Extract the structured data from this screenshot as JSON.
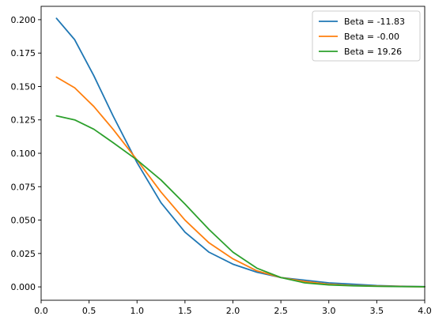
{
  "chart_data": {
    "type": "line",
    "title": "",
    "xlabel": "",
    "ylabel": "",
    "xlim": [
      0.0,
      4.0
    ],
    "ylim": [
      -0.01,
      0.21
    ],
    "x_ticks": [
      0.0,
      0.5,
      1.0,
      1.5,
      2.0,
      2.5,
      3.0,
      3.5,
      4.0
    ],
    "x_tick_labels": [
      "0.0",
      "0.5",
      "1.0",
      "1.5",
      "2.0",
      "2.5",
      "3.0",
      "3.5",
      "4.0"
    ],
    "y_ticks": [
      0.0,
      0.025,
      0.05,
      0.075,
      0.1,
      0.125,
      0.15,
      0.175,
      0.2
    ],
    "y_tick_labels": [
      "0.000",
      "0.025",
      "0.050",
      "0.075",
      "0.100",
      "0.125",
      "0.150",
      "0.175",
      "0.200"
    ],
    "grid": false,
    "legend": {
      "position": "top-right",
      "entries": [
        "Beta = -11.83",
        "Beta = -0.00",
        "Beta = 19.26"
      ]
    },
    "x": [
      0.16,
      0.35,
      0.55,
      0.75,
      1.0,
      1.25,
      1.5,
      1.75,
      2.0,
      2.25,
      2.5,
      2.75,
      3.0,
      3.25,
      3.5,
      3.75,
      4.0
    ],
    "series": [
      {
        "name": "Beta = -11.83",
        "color": "#1f77b4",
        "values": [
          0.201,
          0.185,
          0.158,
          0.128,
          0.093,
          0.063,
          0.041,
          0.026,
          0.017,
          0.011,
          0.007,
          0.005,
          0.003,
          0.002,
          0.001,
          0.0005,
          0.0002
        ]
      },
      {
        "name": "Beta = -0.00",
        "color": "#ff7f0e",
        "values": [
          0.157,
          0.149,
          0.135,
          0.118,
          0.095,
          0.071,
          0.05,
          0.033,
          0.021,
          0.012,
          0.007,
          0.004,
          0.002,
          0.001,
          0.0006,
          0.0003,
          0.0001
        ]
      },
      {
        "name": "Beta = 19.26",
        "color": "#2ca02c",
        "values": [
          0.128,
          0.125,
          0.118,
          0.108,
          0.095,
          0.08,
          0.062,
          0.043,
          0.026,
          0.014,
          0.007,
          0.003,
          0.0015,
          0.0008,
          0.0004,
          0.0002,
          0.0001
        ]
      }
    ]
  }
}
